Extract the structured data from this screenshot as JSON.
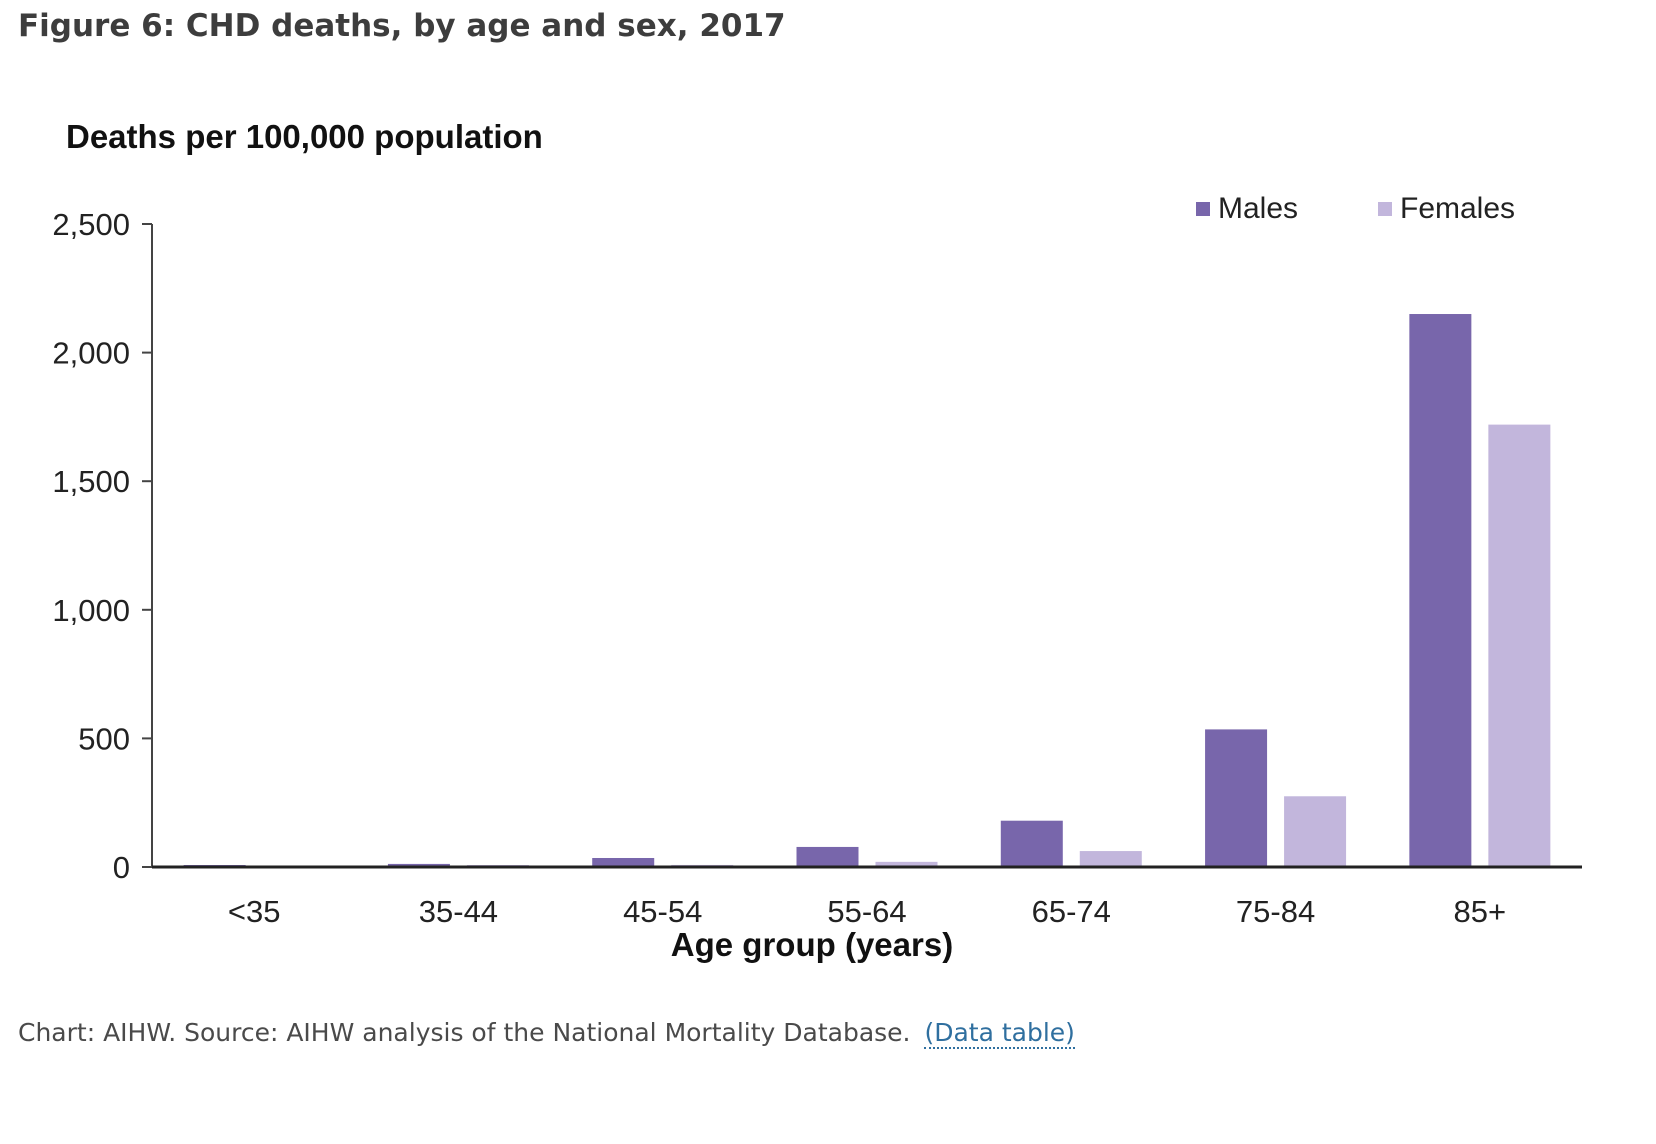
{
  "figure": {
    "title": "Figure 6: CHD deaths, by age and sex, 2017"
  },
  "caption": {
    "text": "Chart: AIHW. Source: AIHW analysis of the National Mortality Database.",
    "link_label": "(Data table)"
  },
  "chart_data": {
    "type": "bar",
    "ylabel": "Deaths per 100,000 population",
    "xlabel": "Age group (years)",
    "categories": [
      "<35",
      "35-44",
      "45-54",
      "55-64",
      "65-74",
      "75-84",
      "85+"
    ],
    "series": [
      {
        "name": "Males",
        "color": "#7866ab",
        "values": [
          2,
          12,
          35,
          78,
          180,
          535,
          2150
        ]
      },
      {
        "name": "Females",
        "color": "#c2b6dc",
        "values": [
          0,
          3,
          8,
          20,
          62,
          275,
          1720
        ]
      }
    ],
    "ylim": [
      0,
      2500
    ],
    "yticks": [
      0,
      500,
      1000,
      1500,
      2000,
      2500
    ],
    "ytick_labels": [
      "0",
      "500",
      "1,000",
      "1,500",
      "2,000",
      "2,500"
    ],
    "grid": false,
    "legend_position": "top-right"
  }
}
